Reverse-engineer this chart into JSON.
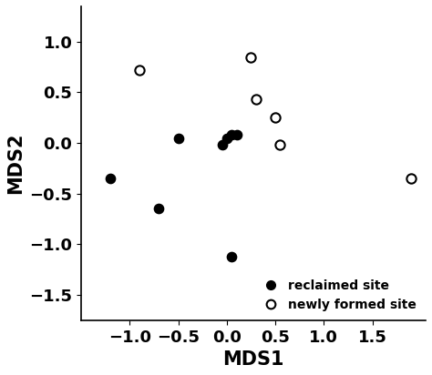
{
  "reclaimed_x": [
    -1.2,
    -0.7,
    -0.5,
    -0.05,
    0.0,
    0.05,
    0.1,
    0.05
  ],
  "reclaimed_y": [
    -0.35,
    -0.65,
    0.05,
    -0.02,
    0.05,
    0.08,
    0.08,
    -1.12
  ],
  "newly_formed_x": [
    -0.9,
    0.25,
    0.3,
    0.5,
    0.55,
    1.9
  ],
  "newly_formed_y": [
    0.72,
    0.85,
    0.43,
    0.25,
    -0.02,
    -0.35
  ],
  "xlabel": "MDS1",
  "ylabel": "MDS2",
  "xlim": [
    -1.5,
    2.05
  ],
  "ylim": [
    -1.75,
    1.35
  ],
  "xticks": [
    -1.0,
    -0.5,
    0.0,
    0.5,
    1.0,
    1.5
  ],
  "yticks": [
    -1.5,
    -1.0,
    -0.5,
    0.0,
    0.5,
    1.0
  ],
  "legend_reclaimed": "reclaimed site",
  "legend_newly": "newly formed site",
  "marker_size": 55,
  "marker_lw": 1.5,
  "bg_color": "#ffffff",
  "tick_fontsize": 13,
  "label_fontsize": 15
}
